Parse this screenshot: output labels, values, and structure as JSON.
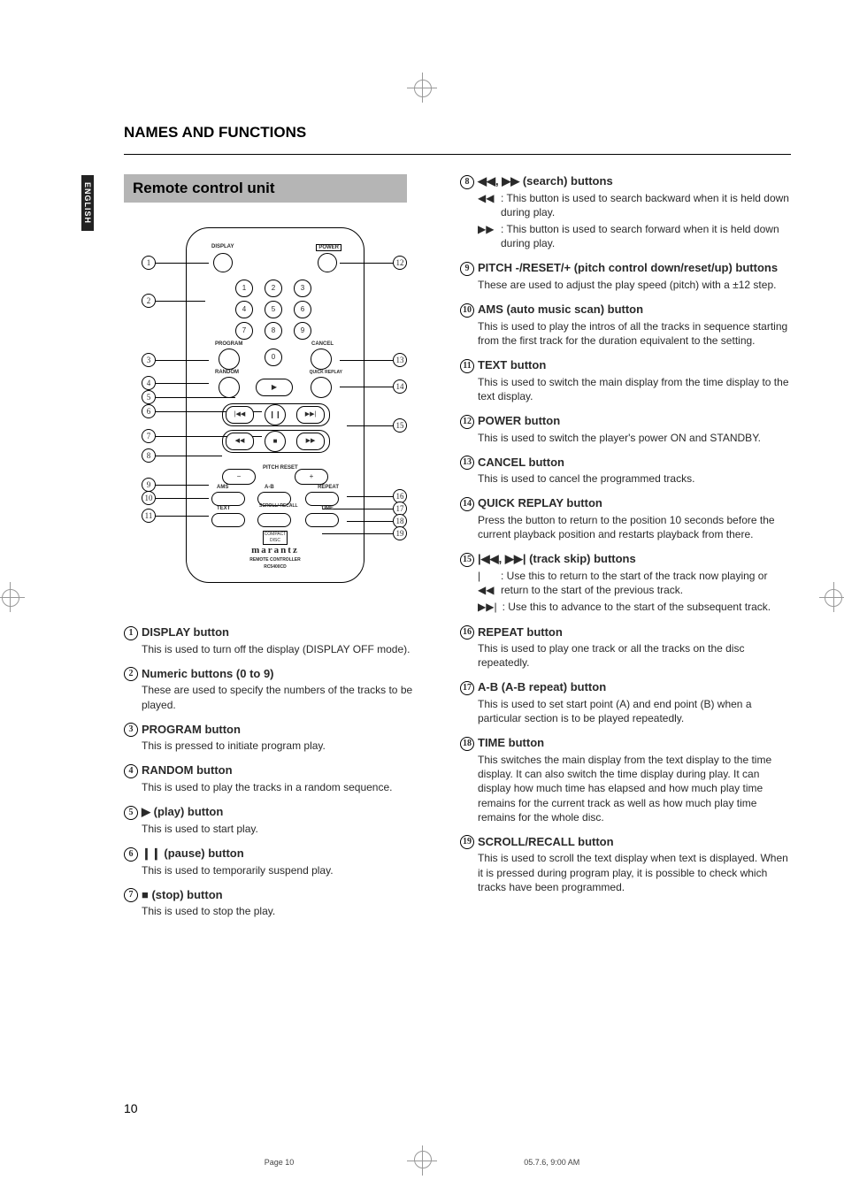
{
  "section_title": "NAMES AND FUNCTIONS",
  "subsection_title": "Remote control unit",
  "language_tab": "ENGLISH",
  "page_number": "10",
  "footer": {
    "left": "Page 10",
    "right": "05.7.6, 9:00 AM"
  },
  "colors": {
    "bar_bg": "#b5b5b5",
    "text": "#2a2a2a"
  },
  "diagram": {
    "top_labels": {
      "display": "DISPLAY",
      "power": "POWER"
    },
    "row_labels": {
      "program": "PROGRAM",
      "cancel": "CANCEL",
      "random": "RANDOM",
      "quick_replay": "QUICK REPLAY"
    },
    "pitch_label": "PITCH\nRESET",
    "row_ams": {
      "ams": "AMS",
      "ab": "A-B",
      "repeat": "REPEAT"
    },
    "row_text": {
      "text": "TEXT",
      "scroll": "SCROLL/\nRECALL",
      "time": "TIME"
    },
    "brand": "marantz",
    "brand_sub1": "REMOTE CONTROLLER",
    "brand_sub2": "RC5400CD",
    "numpad": [
      "1",
      "2",
      "3",
      "4",
      "5",
      "6",
      "7",
      "8",
      "9",
      "0"
    ]
  },
  "left_items": [
    {
      "n": "1",
      "title": "DISPLAY button",
      "desc": "This is used to turn off the display (DISPLAY OFF mode)."
    },
    {
      "n": "2",
      "title": "Numeric buttons (0 to 9)",
      "desc": "These are used to specify the numbers of the tracks to be played."
    },
    {
      "n": "3",
      "title": "PROGRAM button",
      "desc": "This is pressed to initiate program play."
    },
    {
      "n": "4",
      "title": "RANDOM button",
      "desc": "This is used to play the tracks in a random sequence."
    },
    {
      "n": "5",
      "title": "▶ (play) button",
      "desc": "This is used to start play."
    },
    {
      "n": "6",
      "title": "❙❙ (pause) button",
      "desc": "This is used to temporarily suspend play."
    },
    {
      "n": "7",
      "title": "■ (stop) button",
      "desc": "This is used to stop the play."
    }
  ],
  "right_items": [
    {
      "n": "8",
      "title": "◀◀, ▶▶ (search) buttons",
      "sub": [
        {
          "sym": "◀◀",
          "text": ": This button is used to search backward when it is held down during play."
        },
        {
          "sym": "▶▶",
          "text": ": This button is used to search forward when it is held down during play."
        }
      ]
    },
    {
      "n": "9",
      "title": "PITCH -/RESET/+ (pitch control down/reset/up) buttons",
      "desc": "These are used to adjust the play speed (pitch) with a ±12 step."
    },
    {
      "n": "10",
      "title": "AMS (auto music scan) button",
      "desc": "This is used to play the intros of all the tracks in sequence starting from the first track for the duration equivalent to the setting."
    },
    {
      "n": "11",
      "title": "TEXT button",
      "desc": "This is used to switch the main display from the time display to the text display."
    },
    {
      "n": "12",
      "title": "POWER button",
      "desc": "This is used to switch the player's power ON and STANDBY."
    },
    {
      "n": "13",
      "title": "CANCEL button",
      "desc": "This is used to cancel the programmed tracks."
    },
    {
      "n": "14",
      "title": "QUICK REPLAY button",
      "desc": "Press the button to return to the position 10 seconds before the current playback position and restarts playback from there."
    },
    {
      "n": "15",
      "title": "|◀◀, ▶▶| (track skip) buttons",
      "sub": [
        {
          "sym": "|◀◀",
          "text": ": Use this to return to the start of the track now playing or return to the start of the previous track."
        },
        {
          "sym": "▶▶|",
          "text": ": Use this to advance to the start of the subsequent track."
        }
      ]
    },
    {
      "n": "16",
      "title": "REPEAT button",
      "desc": "This is used to play one track or all the tracks on the disc repeatedly."
    },
    {
      "n": "17",
      "title": "A-B (A-B repeat) button",
      "desc": "This is used to set start point (A) and end point (B) when a particular section is to be played repeatedly."
    },
    {
      "n": "18",
      "title": "TIME button",
      "desc": "This switches the main display from the text display to the time display.  It can also switch the time display during play. It can display how much time has elapsed and how much play time remains for the current track as well as how much play time remains for the whole disc."
    },
    {
      "n": "19",
      "title": "SCROLL/RECALL button",
      "desc": "This is used to scroll the text display when text is displayed. When it is pressed during program play, it is possible to check which tracks have been programmed."
    }
  ],
  "callouts_left": [
    "1",
    "2",
    "3",
    "4",
    "5",
    "6",
    "7",
    "8",
    "9",
    "10",
    "11"
  ],
  "callouts_right": [
    "12",
    "13",
    "14",
    "15",
    "16",
    "17",
    "18",
    "19"
  ]
}
